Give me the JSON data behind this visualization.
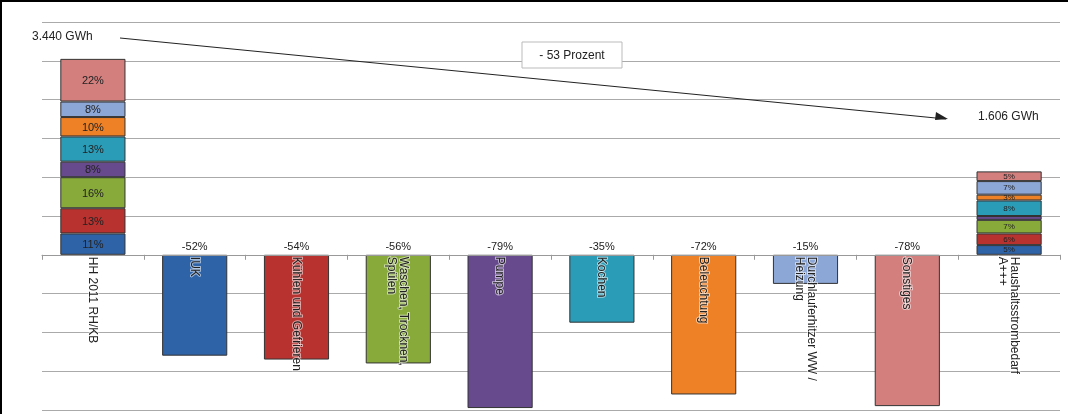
{
  "chart_data": {
    "type": "bar",
    "stacked": true,
    "grid": "y",
    "tick_labels": "x",
    "categories": [
      "HH 2011 RH/KB",
      "IUK",
      "Kühlen und Gefrieren",
      "Waschen, Trocknen, Spülen",
      "Pumpe",
      "Kochen",
      "Beleuchtung",
      "Durchlauferhitzer WW / Heizung",
      "Sonstiges",
      "Haushaltsstrombedarf A+++"
    ],
    "series": [
      {
        "color": "#2e63a8",
        "values": [
          11,
          -52,
          null,
          null,
          null,
          null,
          null,
          null,
          null,
          5
        ],
        "value_labels": [
          "11%",
          "-52%",
          null,
          null,
          null,
          null,
          null,
          null,
          null,
          "5%"
        ]
      },
      {
        "color": "#b8322f",
        "values": [
          13,
          null,
          -54,
          null,
          null,
          null,
          null,
          null,
          null,
          6
        ],
        "value_labels": [
          "13%",
          null,
          "-54%",
          null,
          null,
          null,
          null,
          null,
          null,
          "6%"
        ]
      },
      {
        "color": "#88aa3a",
        "values": [
          16,
          null,
          null,
          -56,
          null,
          null,
          null,
          null,
          null,
          7
        ],
        "value_labels": [
          "16%",
          null,
          null,
          "-56%",
          null,
          null,
          null,
          null,
          null,
          "7%"
        ]
      },
      {
        "color": "#674a8e",
        "values": [
          8,
          null,
          null,
          null,
          -79,
          null,
          null,
          null,
          null,
          2
        ],
        "value_labels": [
          "8%",
          null,
          null,
          null,
          "-79%",
          null,
          null,
          null,
          null,
          null
        ]
      },
      {
        "color": "#2a9cb8",
        "values": [
          13,
          null,
          null,
          null,
          null,
          -35,
          null,
          null,
          null,
          8
        ],
        "value_labels": [
          "13%",
          null,
          null,
          null,
          null,
          "-35%",
          null,
          null,
          null,
          "8%"
        ]
      },
      {
        "color": "#ee8126",
        "values": [
          10,
          null,
          null,
          null,
          null,
          null,
          -72,
          null,
          null,
          3
        ],
        "value_labels": [
          "10%",
          null,
          null,
          null,
          null,
          null,
          "-72%",
          null,
          null,
          "3%"
        ]
      },
      {
        "color": "#8ca6d6",
        "values": [
          8,
          null,
          null,
          null,
          null,
          null,
          null,
          -15,
          null,
          7
        ],
        "value_labels": [
          "8%",
          null,
          null,
          null,
          null,
          null,
          null,
          "-15%",
          null,
          "7%"
        ]
      },
      {
        "color": "#d27f7e",
        "values": [
          22,
          null,
          null,
          null,
          null,
          null,
          null,
          null,
          -78,
          5
        ],
        "value_labels": [
          "22%",
          null,
          null,
          null,
          null,
          null,
          null,
          null,
          "-78%",
          "5%"
        ]
      }
    ],
    "annotations": [
      "3.440 GWh",
      "1.606 GWh",
      "- 53 Prozent"
    ]
  }
}
